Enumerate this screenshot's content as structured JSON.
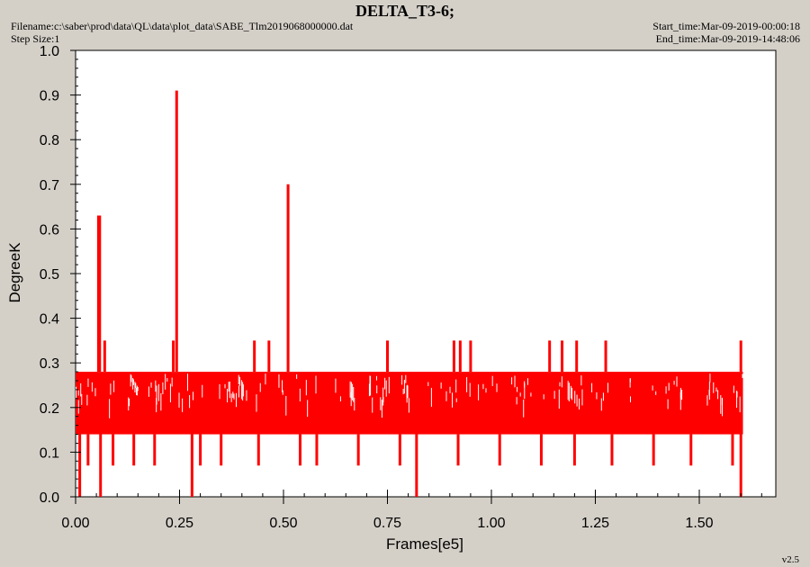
{
  "header": {
    "title": "DELTA_T3-6;",
    "filename": "Filename:c:\\saber\\prod\\data\\QL\\data\\plot_data\\SABE_Tlm2019068000000.dat",
    "step_size": "Step Size:1",
    "start_time": "Start_time:Mar-09-2019-00:00:18",
    "end_time": "End_time:Mar-09-2019-14:48:06"
  },
  "version": "v2.5",
  "colors": {
    "series": "#ff0000",
    "background": "#d4d0c8",
    "plot_area": "#ffffff"
  },
  "chart_data": {
    "type": "line",
    "title": "DELTA_T3-6;",
    "xlabel": "Frames[e5]",
    "ylabel": "DegreeK",
    "xlim": [
      0,
      1.68
    ],
    "ylim": [
      0,
      1.0
    ],
    "x_ticks": [
      "0.00",
      "0.25",
      "0.50",
      "0.75",
      "1.00",
      "1.25",
      "1.50"
    ],
    "y_ticks": [
      "0.0",
      "0.1",
      "0.2",
      "0.3",
      "0.4",
      "0.5",
      "0.6",
      "0.7",
      "0.8",
      "0.9",
      "1.0"
    ],
    "grid": false,
    "series": [
      {
        "color": "#ff0000",
        "baseline_band": [
          0.14,
          0.28
        ],
        "x_range": [
          0.0,
          1.605
        ],
        "spikes": [
          {
            "x": 0.055,
            "y": 0.63
          },
          {
            "x": 0.058,
            "y": 0.63
          },
          {
            "x": 0.243,
            "y": 0.91
          },
          {
            "x": 0.511,
            "y": 0.7
          },
          {
            "x": 0.07,
            "y": 0.35
          },
          {
            "x": 0.235,
            "y": 0.35
          },
          {
            "x": 0.43,
            "y": 0.35
          },
          {
            "x": 0.465,
            "y": 0.35
          },
          {
            "x": 0.75,
            "y": 0.35
          },
          {
            "x": 0.91,
            "y": 0.35
          },
          {
            "x": 0.925,
            "y": 0.35
          },
          {
            "x": 0.95,
            "y": 0.35
          },
          {
            "x": 1.14,
            "y": 0.35
          },
          {
            "x": 1.17,
            "y": 0.35
          },
          {
            "x": 1.205,
            "y": 0.35
          },
          {
            "x": 1.275,
            "y": 0.35
          },
          {
            "x": 1.6,
            "y": 0.35
          }
        ],
        "dips": [
          {
            "x": 0.01,
            "y": 0.0
          },
          {
            "x": 0.06,
            "y": 0.0
          },
          {
            "x": 0.28,
            "y": 0.0
          },
          {
            "x": 0.82,
            "y": 0.0
          },
          {
            "x": 1.6,
            "y": 0.0
          },
          {
            "x": 0.03,
            "y": 0.07
          },
          {
            "x": 0.09,
            "y": 0.07
          },
          {
            "x": 0.14,
            "y": 0.07
          },
          {
            "x": 0.19,
            "y": 0.07
          },
          {
            "x": 0.3,
            "y": 0.07
          },
          {
            "x": 0.35,
            "y": 0.07
          },
          {
            "x": 0.44,
            "y": 0.07
          },
          {
            "x": 0.54,
            "y": 0.07
          },
          {
            "x": 0.58,
            "y": 0.07
          },
          {
            "x": 0.68,
            "y": 0.07
          },
          {
            "x": 0.78,
            "y": 0.07
          },
          {
            "x": 0.92,
            "y": 0.07
          },
          {
            "x": 1.02,
            "y": 0.07
          },
          {
            "x": 1.12,
            "y": 0.07
          },
          {
            "x": 1.2,
            "y": 0.07
          },
          {
            "x": 1.29,
            "y": 0.07
          },
          {
            "x": 1.39,
            "y": 0.07
          },
          {
            "x": 1.48,
            "y": 0.07
          },
          {
            "x": 1.58,
            "y": 0.07
          }
        ]
      }
    ]
  }
}
